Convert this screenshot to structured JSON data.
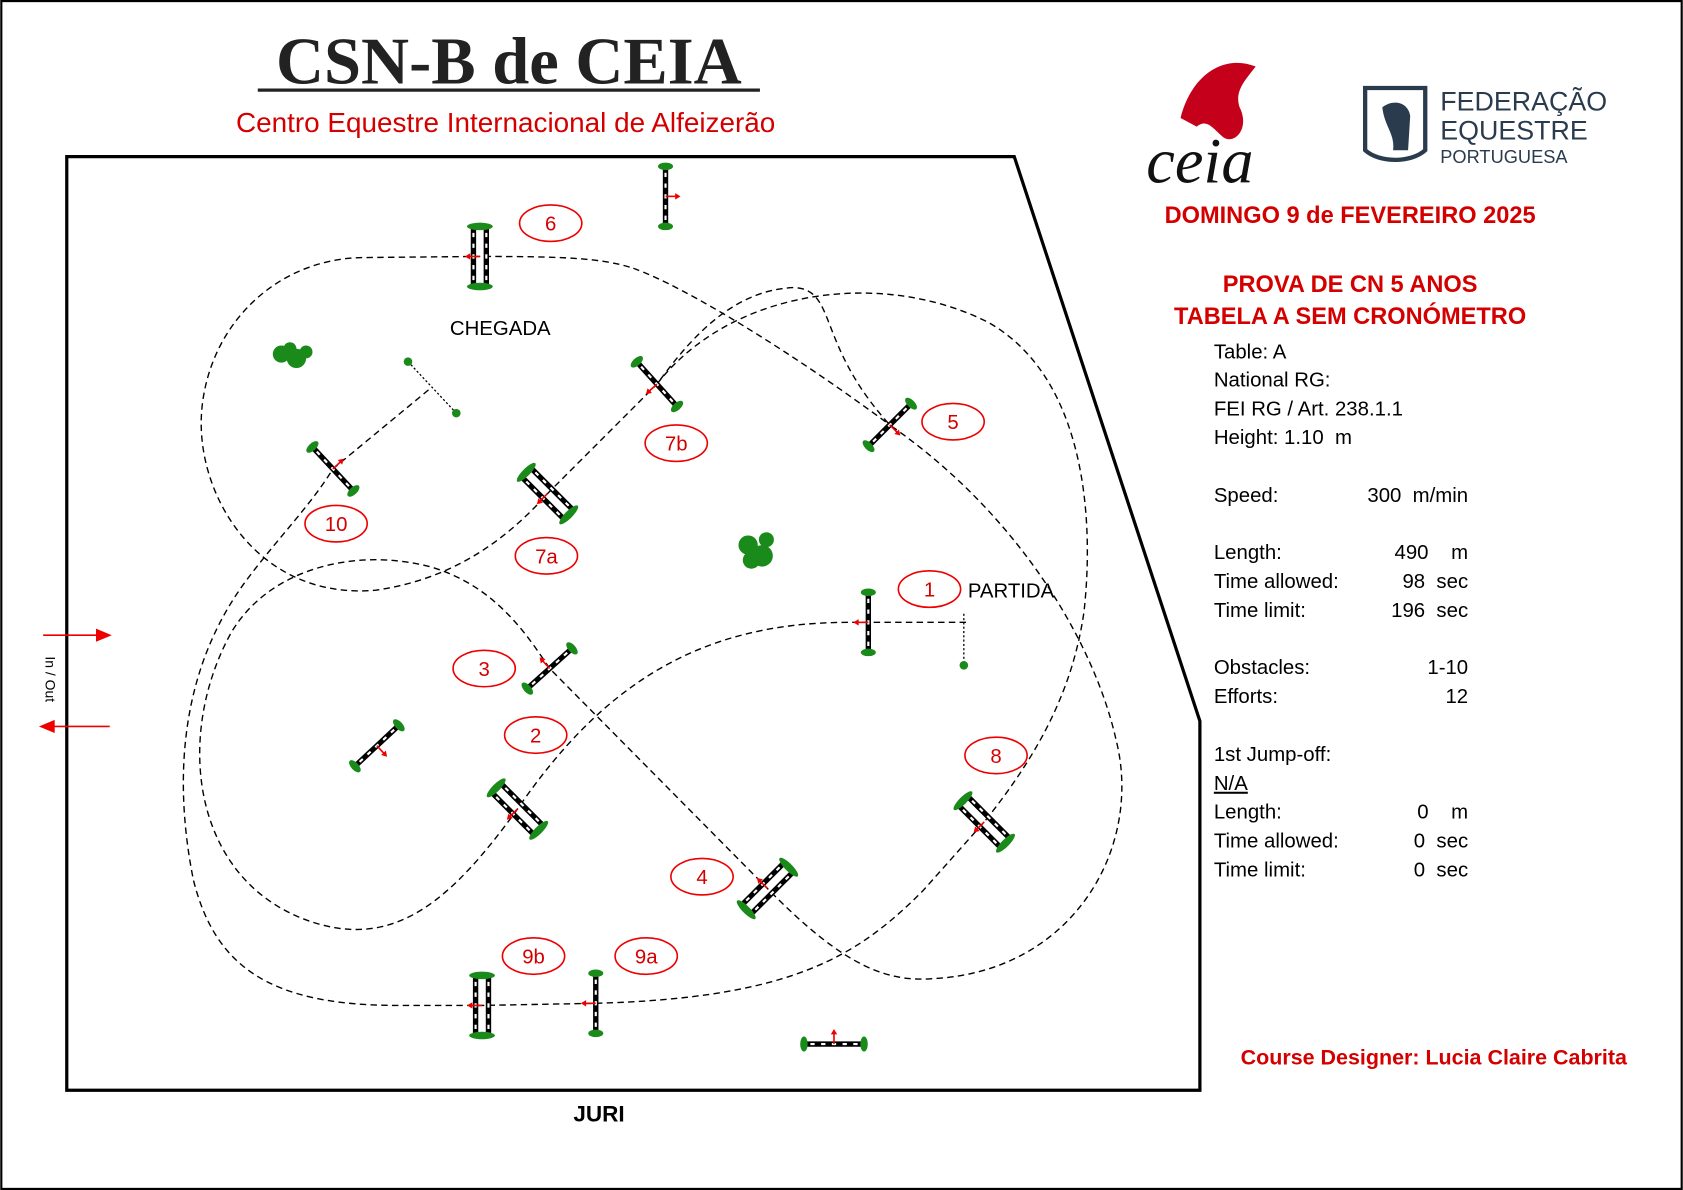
{
  "header": {
    "title": "CSN-B de CEIA",
    "subtitle": "Centro Equestre Internacional de Alfeizerão",
    "date": "DOMINGO 9 de FEVEREIRO 2025",
    "competition": [
      "PROVA DE CN 5 ANOS",
      "TABELA A SEM CRONÓMETRO"
    ]
  },
  "logos": {
    "ceia": "ceia",
    "federation": [
      "FEDERAÇÃO",
      "EQUESTRE",
      "PORTUGUESA"
    ]
  },
  "info": {
    "lines": [
      "Table: A",
      "National RG:",
      "FEI RG / Art. 238.1.1",
      "Height: 1.10  m"
    ],
    "rows": [
      {
        "label": "Speed:",
        "value": "300  m/min"
      },
      {
        "label": "Length:",
        "value": "490    m"
      },
      {
        "label": "Time allowed:",
        "value": "98  sec"
      },
      {
        "label": "Time limit:",
        "value": "196  sec"
      },
      {
        "label": "Obstacles:",
        "value": "1-10"
      },
      {
        "label": "Efforts:",
        "value": "12"
      }
    ],
    "jump_off": {
      "title": "1st Jump-off:",
      "status": "N/A",
      "rows": [
        {
          "label": "Length:",
          "value": "0    m"
        },
        {
          "label": "Time allowed:",
          "value": "0  sec"
        },
        {
          "label": "Time limit:",
          "value": "0  sec"
        }
      ]
    }
  },
  "arena": {
    "finish": "CHEGADA",
    "start": "PARTIDA",
    "entrance": "In / Out",
    "jury": "JURI",
    "obstacles": [
      "1",
      "2",
      "3",
      "4",
      "5",
      "6",
      "7a",
      "7b",
      "8",
      "9a",
      "9b",
      "10"
    ]
  },
  "footer": {
    "designer": "Course Designer: Lucia Claire Cabrita"
  }
}
